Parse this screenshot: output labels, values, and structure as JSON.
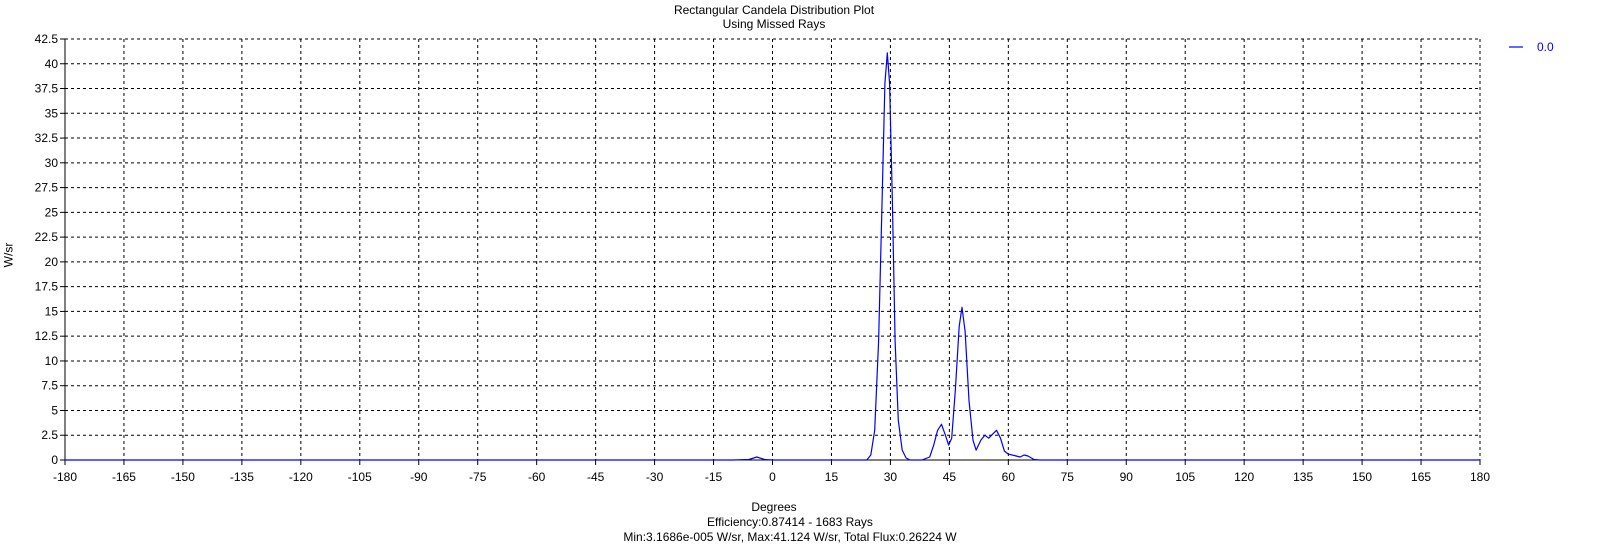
{
  "chart_data": {
    "type": "line",
    "title": "Rectangular Candela Distribution Plot",
    "subtitle": "Using Missed Rays",
    "xlabel": "Degrees",
    "ylabel": "W/sr",
    "xlim": [
      -180,
      180
    ],
    "ylim": [
      0,
      42.5
    ],
    "x_ticks": [
      -180,
      -165,
      -150,
      -135,
      -120,
      -105,
      -90,
      -75,
      -60,
      -45,
      -30,
      -15,
      0,
      15,
      30,
      45,
      60,
      75,
      90,
      105,
      120,
      135,
      150,
      165,
      180
    ],
    "y_ticks": [
      0,
      2.5,
      5,
      7.5,
      10,
      12.5,
      15,
      17.5,
      20,
      22.5,
      25,
      27.5,
      30,
      32.5,
      35,
      37.5,
      40,
      42.5
    ],
    "grid": true,
    "grid_style": "dashed",
    "legend_position": "top-right",
    "series": [
      {
        "name": "0.0",
        "color": "#0000ff",
        "points": [
          [
            -180,
            0
          ],
          [
            -10,
            0
          ],
          [
            -6,
            0.05
          ],
          [
            -4,
            0.3
          ],
          [
            -2,
            0.05
          ],
          [
            0,
            0
          ],
          [
            20,
            0
          ],
          [
            24,
            0
          ],
          [
            25,
            0.5
          ],
          [
            26,
            3
          ],
          [
            27,
            12
          ],
          [
            27.8,
            25
          ],
          [
            28.6,
            38
          ],
          [
            29.2,
            41.1
          ],
          [
            29.8,
            38
          ],
          [
            30.5,
            26
          ],
          [
            31.2,
            12
          ],
          [
            32,
            4
          ],
          [
            33,
            1
          ],
          [
            34,
            0.2
          ],
          [
            35,
            0
          ],
          [
            38,
            0
          ],
          [
            40,
            0.3
          ],
          [
            41,
            1.5
          ],
          [
            42,
            3
          ],
          [
            43,
            3.6
          ],
          [
            44,
            2.5
          ],
          [
            44.8,
            1.5
          ],
          [
            45.6,
            2.2
          ],
          [
            46.5,
            7
          ],
          [
            47.5,
            13.5
          ],
          [
            48.2,
            15.4
          ],
          [
            49,
            13
          ],
          [
            50,
            6
          ],
          [
            51,
            2
          ],
          [
            51.8,
            1
          ],
          [
            53,
            2
          ],
          [
            54,
            2.5
          ],
          [
            55,
            2.2
          ],
          [
            56,
            2.6
          ],
          [
            57,
            3
          ],
          [
            58,
            2.2
          ],
          [
            59,
            0.9
          ],
          [
            60,
            0.6
          ],
          [
            62,
            0.4
          ],
          [
            63,
            0.3
          ],
          [
            64,
            0.5
          ],
          [
            65,
            0.4
          ],
          [
            66.5,
            0.05
          ],
          [
            68,
            0
          ],
          [
            180,
            0
          ]
        ]
      }
    ],
    "annotations": [
      "Efficiency:0.87414 - 1683 Rays",
      "Min:3.1686e-005 W/sr, Max:41.124 W/sr, Total Flux:0.26224 W"
    ]
  }
}
